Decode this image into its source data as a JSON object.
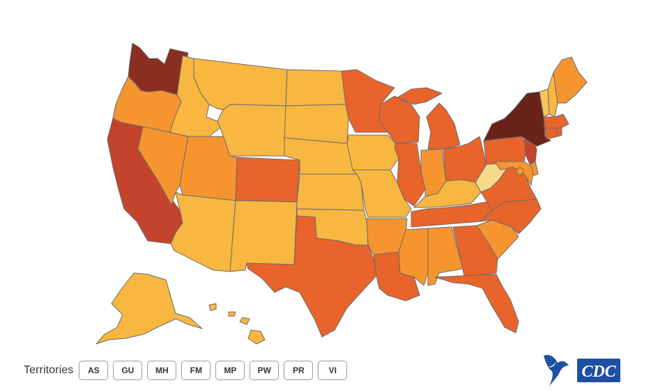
{
  "map": {
    "colors": {
      "level_1": "#f9d989",
      "level_2": "#f8c55a",
      "level_3": "#f7b741",
      "level_4": "#f6952f",
      "level_5": "#e8642b",
      "level_6": "#c4432c",
      "level_7": "#8a2e21",
      "level_8": "#6a2318",
      "border": "#6b6b6b"
    },
    "states": [
      {
        "id": "WA",
        "level": "level_7"
      },
      {
        "id": "OR",
        "level": "level_4"
      },
      {
        "id": "CA",
        "level": "level_6"
      },
      {
        "id": "NV",
        "level": "level_4"
      },
      {
        "id": "ID",
        "level": "level_3"
      },
      {
        "id": "MT",
        "level": "level_3"
      },
      {
        "id": "WY",
        "level": "level_3"
      },
      {
        "id": "UT",
        "level": "level_4"
      },
      {
        "id": "AZ",
        "level": "level_3"
      },
      {
        "id": "CO",
        "level": "level_5"
      },
      {
        "id": "NM",
        "level": "level_3"
      },
      {
        "id": "ND",
        "level": "level_3"
      },
      {
        "id": "SD",
        "level": "level_3"
      },
      {
        "id": "NE",
        "level": "level_3"
      },
      {
        "id": "KS",
        "level": "level_3"
      },
      {
        "id": "OK",
        "level": "level_3"
      },
      {
        "id": "TX",
        "level": "level_5"
      },
      {
        "id": "MN",
        "level": "level_5"
      },
      {
        "id": "IA",
        "level": "level_3"
      },
      {
        "id": "MO",
        "level": "level_3"
      },
      {
        "id": "AR",
        "level": "level_4"
      },
      {
        "id": "LA",
        "level": "level_5"
      },
      {
        "id": "WI",
        "level": "level_5"
      },
      {
        "id": "IL",
        "level": "level_5"
      },
      {
        "id": "MI",
        "level": "level_5"
      },
      {
        "id": "IN",
        "level": "level_4"
      },
      {
        "id": "OH",
        "level": "level_5"
      },
      {
        "id": "KY",
        "level": "level_3"
      },
      {
        "id": "TN",
        "level": "level_5"
      },
      {
        "id": "MS",
        "level": "level_4"
      },
      {
        "id": "AL",
        "level": "level_4"
      },
      {
        "id": "GA",
        "level": "level_5"
      },
      {
        "id": "FL",
        "level": "level_5"
      },
      {
        "id": "SC",
        "level": "level_4"
      },
      {
        "id": "NC",
        "level": "level_5"
      },
      {
        "id": "VA",
        "level": "level_5"
      },
      {
        "id": "WV",
        "level": "level_1"
      },
      {
        "id": "PA",
        "level": "level_5"
      },
      {
        "id": "NY",
        "level": "level_8"
      },
      {
        "id": "NJ",
        "level": "level_6"
      },
      {
        "id": "DE",
        "level": "level_4"
      },
      {
        "id": "MD",
        "level": "level_4"
      },
      {
        "id": "DC",
        "level": "level_4"
      },
      {
        "id": "CT",
        "level": "level_5"
      },
      {
        "id": "RI",
        "level": "level_5"
      },
      {
        "id": "MA",
        "level": "level_5"
      },
      {
        "id": "VT",
        "level": "level_2"
      },
      {
        "id": "NH",
        "level": "level_3"
      },
      {
        "id": "ME",
        "level": "level_4"
      },
      {
        "id": "AK",
        "level": "level_3"
      },
      {
        "id": "HI",
        "level": "level_3"
      }
    ]
  },
  "territories": {
    "label": "Territories",
    "buttons": [
      "AS",
      "GU",
      "MH",
      "FM",
      "MP",
      "PW",
      "PR",
      "VI"
    ]
  },
  "logos": {
    "hhs_icon": "hhs-eagle-icon",
    "cdc_text": "CDC",
    "cdc_color": "#1f4fa2"
  }
}
